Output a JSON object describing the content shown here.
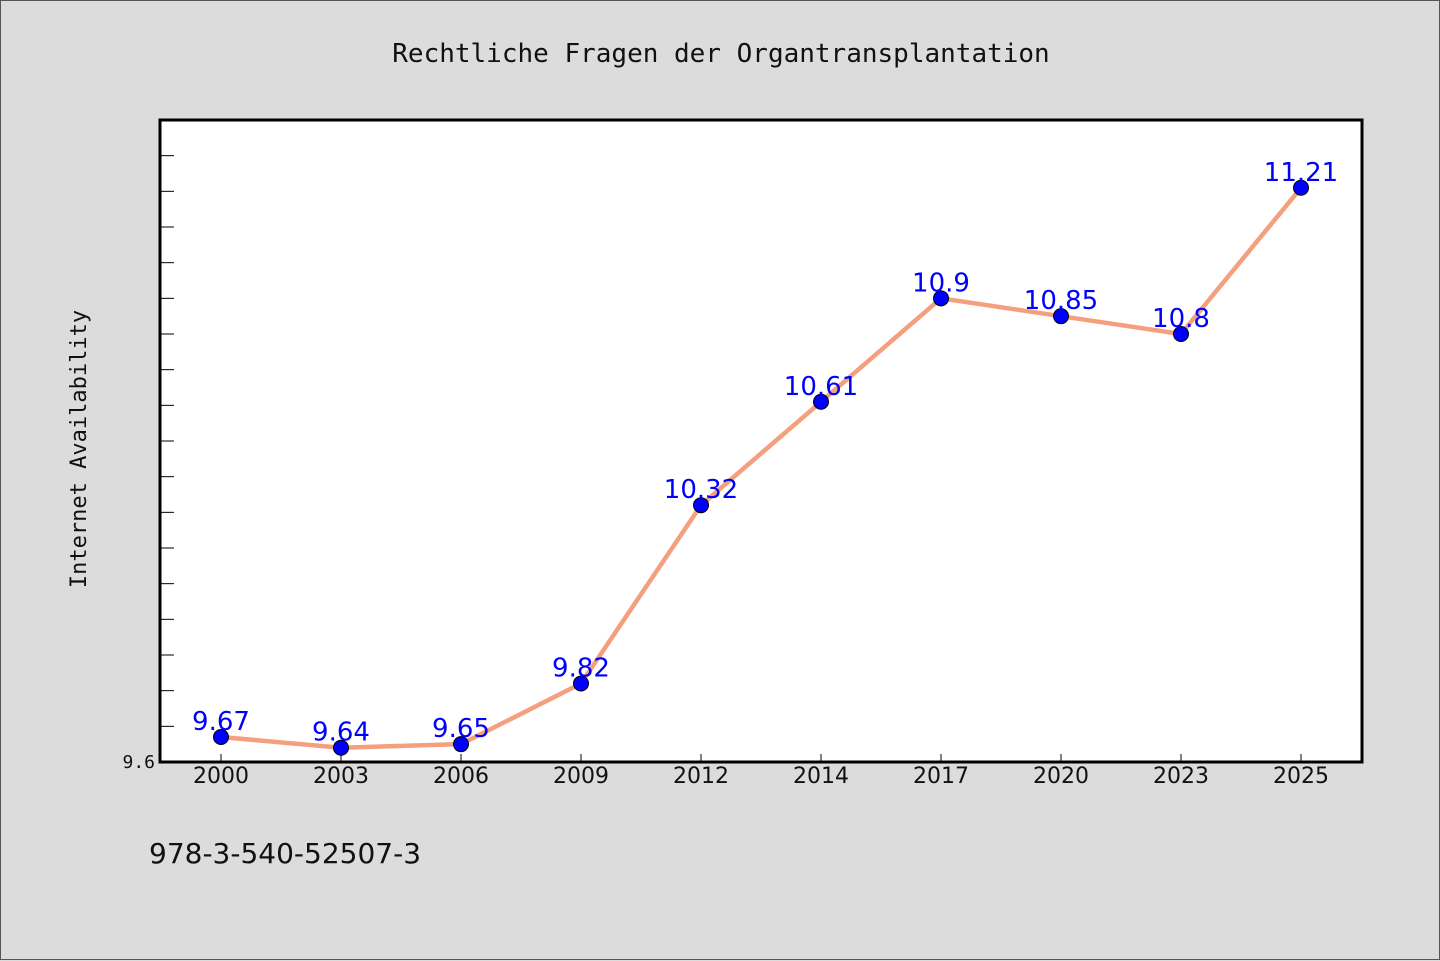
{
  "chart_data": {
    "type": "line",
    "title": "Rechtliche Fragen der Organtransplantation",
    "xlabel": "",
    "ylabel": "Internet Availability",
    "categories": [
      "2000",
      "2003",
      "2006",
      "2009",
      "2012",
      "2014",
      "2017",
      "2020",
      "2023",
      "2025"
    ],
    "series": [
      {
        "values": [
          9.67,
          9.64,
          9.65,
          9.82,
          10.32,
          10.61,
          10.9,
          10.85,
          10.8,
          11.21
        ]
      }
    ],
    "ylim": [
      9.6,
      11.4
    ],
    "y_tick_labels": [
      "9.6"
    ],
    "grid": false,
    "legend": "none",
    "line_color": "#f4a07e",
    "marker_color": "#0000ff",
    "label_color": "#0000ff",
    "annotation": "978-3-540-52507-3"
  }
}
